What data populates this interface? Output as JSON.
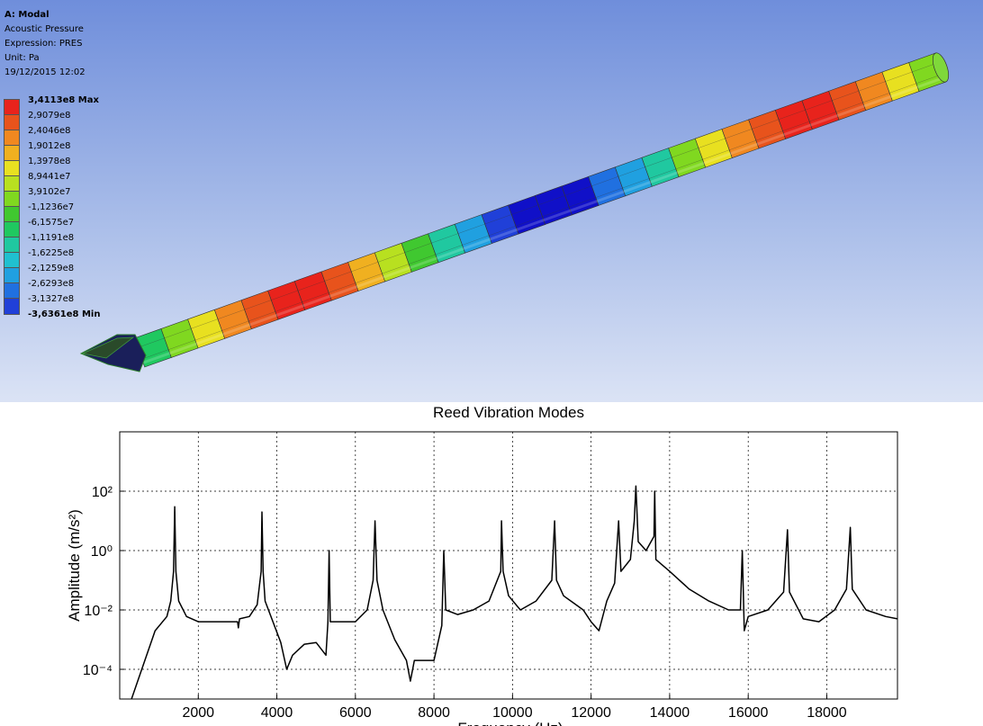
{
  "viewport": {
    "info": {
      "line1": "A: Modal",
      "line2": "Acoustic Pressure",
      "line3": "Expression: PRES",
      "line4": "Unit: Pa",
      "line5": "19/12/2015 12:02"
    },
    "legend": [
      {
        "label": "3,4113e8 Max",
        "color": "#e8231c",
        "bold": true
      },
      {
        "label": "2,9079e8",
        "color": "#e8531c",
        "bold": false
      },
      {
        "label": "2,4046e8",
        "color": "#f08820",
        "bold": false
      },
      {
        "label": "1,9012e8",
        "color": "#f0b020",
        "bold": false
      },
      {
        "label": "1,3978e8",
        "color": "#e8e020",
        "bold": false
      },
      {
        "label": "8,9441e7",
        "color": "#b8e020",
        "bold": false
      },
      {
        "label": "3,9102e7",
        "color": "#80d820",
        "bold": false
      },
      {
        "label": "-1,1236e7",
        "color": "#40c830",
        "bold": false
      },
      {
        "label": "-6,1575e7",
        "color": "#20c860",
        "bold": false
      },
      {
        "label": "-1,1191e8",
        "color": "#20c8a0",
        "bold": false
      },
      {
        "label": "-1,6225e8",
        "color": "#20c0d0",
        "bold": false
      },
      {
        "label": "-2,1259e8",
        "color": "#20a0e0",
        "bold": false
      },
      {
        "label": "-2,6293e8",
        "color": "#2070e0",
        "bold": false
      },
      {
        "label": "-3,1327e8",
        "color": "#2040d8",
        "bold": false
      },
      {
        "label": "-3,6361e8 Min",
        "color": "#1010c8",
        "bold": true
      }
    ]
  },
  "chart_data": {
    "type": "line",
    "title": "Reed Vibration Modes",
    "xlabel": "Frequency (Hz)",
    "ylabel": "Amplitude (m/s²)",
    "yscale": "log",
    "xlim": [
      0,
      19800
    ],
    "ylim": [
      1e-05,
      10000
    ],
    "x_ticks": [
      "2000",
      "4000",
      "6000",
      "8000",
      "10000",
      "12000",
      "14000",
      "16000",
      "18000"
    ],
    "y_ticks": [
      "10²",
      "10⁰",
      "10⁻²",
      "10⁻⁴"
    ],
    "grid": true,
    "series": [
      {
        "color": "#000000",
        "points": [
          [
            300,
            1e-05
          ],
          [
            900,
            0.002
          ],
          [
            1200,
            0.006
          ],
          [
            1300,
            0.02
          ],
          [
            1370,
            0.2
          ],
          [
            1400,
            30
          ],
          [
            1430,
            0.2
          ],
          [
            1500,
            0.02
          ],
          [
            1700,
            0.006
          ],
          [
            2000,
            0.004
          ],
          [
            2500,
            0.004
          ],
          [
            3000,
            0.004
          ],
          [
            3020,
            0.0025
          ],
          [
            3050,
            0.005
          ],
          [
            3300,
            0.006
          ],
          [
            3500,
            0.015
          ],
          [
            3600,
            0.2
          ],
          [
            3620,
            20
          ],
          [
            3650,
            0.2
          ],
          [
            3700,
            0.02
          ],
          [
            3900,
            0.004
          ],
          [
            4100,
            0.0008
          ],
          [
            4250,
            0.0001
          ],
          [
            4400,
            0.0003
          ],
          [
            4700,
            0.0007
          ],
          [
            5000,
            0.0008
          ],
          [
            5250,
            0.0003
          ],
          [
            5300,
            0.004
          ],
          [
            5330,
            1
          ],
          [
            5360,
            0.004
          ],
          [
            5500,
            0.004
          ],
          [
            6000,
            0.004
          ],
          [
            6300,
            0.01
          ],
          [
            6450,
            0.1
          ],
          [
            6500,
            10
          ],
          [
            6550,
            0.1
          ],
          [
            6700,
            0.01
          ],
          [
            7000,
            0.001
          ],
          [
            7300,
            0.0002
          ],
          [
            7400,
            4e-05
          ],
          [
            7500,
            0.0002
          ],
          [
            7800,
            0.0002
          ],
          [
            8000,
            0.0002
          ],
          [
            8200,
            0.003
          ],
          [
            8250,
            1
          ],
          [
            8300,
            0.01
          ],
          [
            8600,
            0.007
          ],
          [
            9000,
            0.01
          ],
          [
            9400,
            0.02
          ],
          [
            9700,
            0.2
          ],
          [
            9720,
            10
          ],
          [
            9760,
            0.2
          ],
          [
            9900,
            0.03
          ],
          [
            10200,
            0.01
          ],
          [
            10600,
            0.02
          ],
          [
            11000,
            0.1
          ],
          [
            11070,
            10
          ],
          [
            11120,
            0.1
          ],
          [
            11300,
            0.03
          ],
          [
            11800,
            0.01
          ],
          [
            12000,
            0.004
          ],
          [
            12200,
            0.002
          ],
          [
            12400,
            0.02
          ],
          [
            12600,
            0.08
          ],
          [
            12700,
            10
          ],
          [
            12760,
            0.2
          ],
          [
            13000,
            0.5
          ],
          [
            13100,
            10
          ],
          [
            13140,
            150
          ],
          [
            13200,
            2
          ],
          [
            13400,
            1
          ],
          [
            13600,
            3
          ],
          [
            13620,
            100
          ],
          [
            13650,
            0.5
          ],
          [
            14000,
            0.2
          ],
          [
            14500,
            0.05
          ],
          [
            15000,
            0.02
          ],
          [
            15500,
            0.01
          ],
          [
            15800,
            0.01
          ],
          [
            15850,
            1
          ],
          [
            15900,
            0.002
          ],
          [
            16000,
            0.006
          ],
          [
            16500,
            0.01
          ],
          [
            16900,
            0.04
          ],
          [
            17000,
            5
          ],
          [
            17050,
            0.04
          ],
          [
            17400,
            0.005
          ],
          [
            17800,
            0.004
          ],
          [
            18200,
            0.01
          ],
          [
            18500,
            0.05
          ],
          [
            18600,
            6
          ],
          [
            18650,
            0.05
          ],
          [
            19000,
            0.01
          ],
          [
            19500,
            0.006
          ],
          [
            19800,
            0.005
          ]
        ]
      }
    ]
  }
}
